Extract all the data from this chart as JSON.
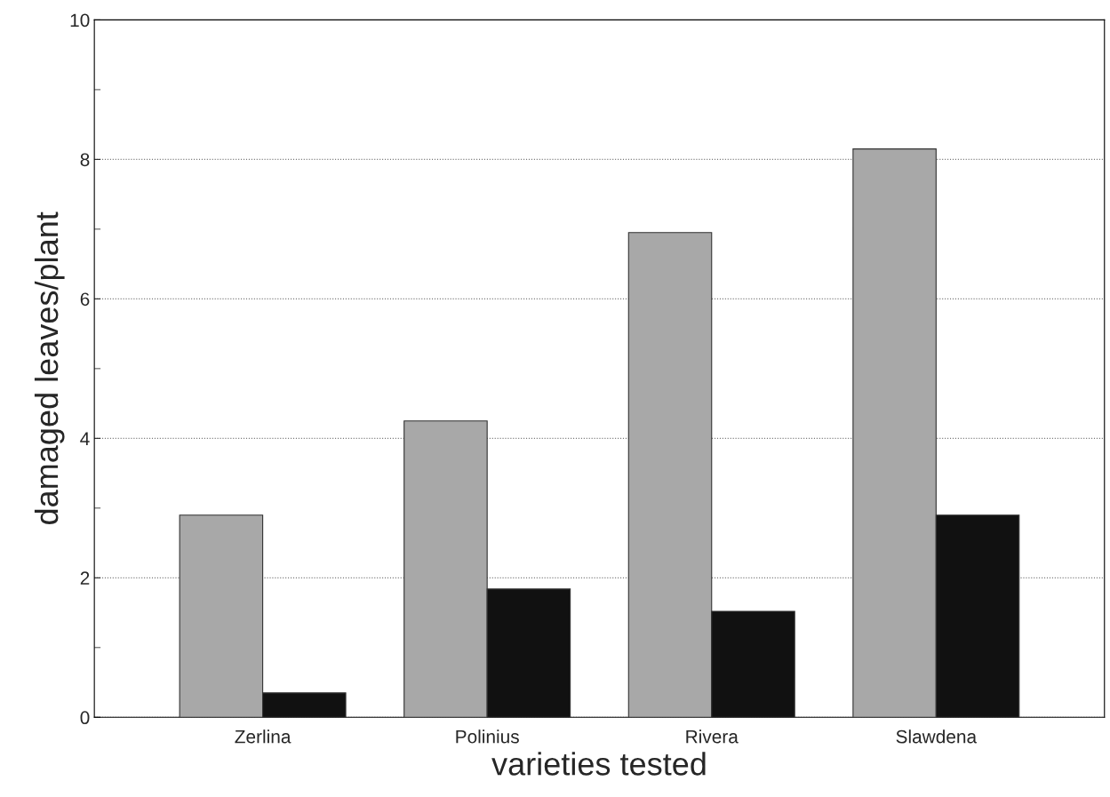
{
  "chart_data": {
    "type": "bar",
    "xlabel": "varieties tested",
    "ylabel": "damaged leaves/plant",
    "categories": [
      "Zerlina",
      "Polinius",
      "Rivera",
      "Slawdena"
    ],
    "series": [
      {
        "color": "#a8a8a8",
        "values": [
          2.9,
          4.25,
          6.95,
          8.15
        ]
      },
      {
        "color": "#111111",
        "values": [
          0.35,
          1.84,
          1.52,
          2.9
        ]
      }
    ],
    "ylim": [
      0,
      10
    ],
    "yticks": [
      0,
      {
        "value": 1,
        "label": null
      },
      2,
      {
        "value": 3,
        "label": null
      },
      4,
      {
        "value": 5,
        "label": null
      },
      6,
      {
        "value": 7,
        "label": null
      },
      8,
      {
        "value": 9,
        "label": null
      },
      10
    ],
    "grid": "y",
    "legend": false
  }
}
